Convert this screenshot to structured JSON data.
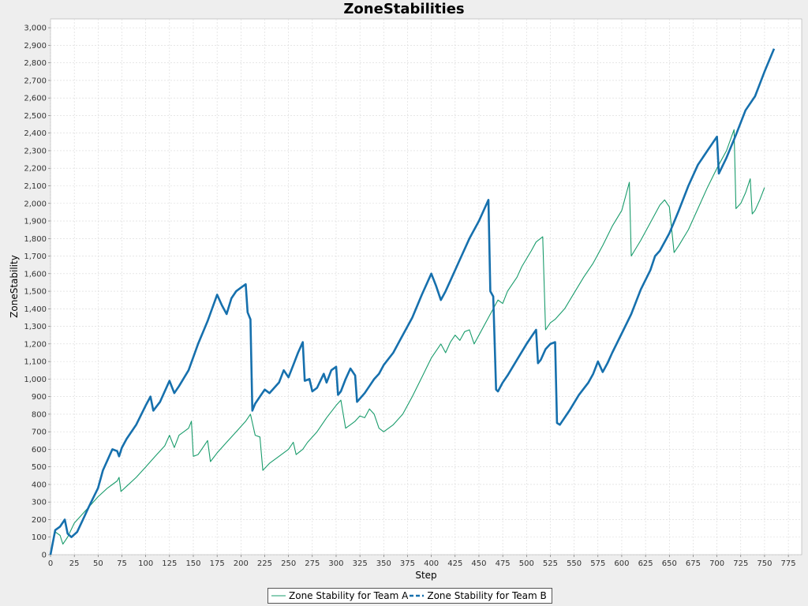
{
  "chart_data": {
    "type": "line",
    "title": "ZoneStabilities",
    "xlabel": "Step",
    "ylabel": "ZoneStability",
    "xlim": [
      0,
      789
    ],
    "ylim": [
      0,
      3050
    ],
    "xticks": [
      0,
      25,
      50,
      75,
      100,
      125,
      150,
      175,
      200,
      225,
      250,
      275,
      300,
      325,
      350,
      375,
      400,
      425,
      450,
      475,
      500,
      525,
      550,
      575,
      600,
      625,
      650,
      675,
      700,
      725,
      750,
      775
    ],
    "yticks": [
      0,
      100,
      200,
      300,
      400,
      500,
      600,
      700,
      800,
      900,
      1000,
      1100,
      1200,
      1300,
      1400,
      1500,
      1600,
      1700,
      1800,
      1900,
      2000,
      2100,
      2200,
      2300,
      2400,
      2500,
      2600,
      2700,
      2800,
      2900,
      3000
    ],
    "grid": true,
    "legend_position": "bottom",
    "series": [
      {
        "name": "Zone Stability for Team A",
        "color": "#1a9c6c",
        "style": "solid",
        "points": [
          [
            0,
            0
          ],
          [
            5,
            130
          ],
          [
            10,
            110
          ],
          [
            13,
            60
          ],
          [
            18,
            100
          ],
          [
            25,
            180
          ],
          [
            30,
            210
          ],
          [
            40,
            270
          ],
          [
            50,
            330
          ],
          [
            60,
            380
          ],
          [
            65,
            400
          ],
          [
            70,
            420
          ],
          [
            72,
            440
          ],
          [
            74,
            360
          ],
          [
            80,
            390
          ],
          [
            90,
            440
          ],
          [
            100,
            500
          ],
          [
            110,
            560
          ],
          [
            120,
            620
          ],
          [
            125,
            680
          ],
          [
            130,
            610
          ],
          [
            135,
            680
          ],
          [
            140,
            700
          ],
          [
            145,
            720
          ],
          [
            148,
            760
          ],
          [
            150,
            560
          ],
          [
            155,
            570
          ],
          [
            160,
            610
          ],
          [
            165,
            650
          ],
          [
            168,
            530
          ],
          [
            175,
            580
          ],
          [
            185,
            640
          ],
          [
            195,
            700
          ],
          [
            205,
            760
          ],
          [
            210,
            800
          ],
          [
            215,
            680
          ],
          [
            220,
            670
          ],
          [
            223,
            480
          ],
          [
            230,
            520
          ],
          [
            240,
            560
          ],
          [
            250,
            600
          ],
          [
            255,
            640
          ],
          [
            258,
            570
          ],
          [
            265,
            600
          ],
          [
            270,
            640
          ],
          [
            280,
            700
          ],
          [
            290,
            780
          ],
          [
            300,
            850
          ],
          [
            305,
            880
          ],
          [
            310,
            720
          ],
          [
            315,
            740
          ],
          [
            320,
            760
          ],
          [
            325,
            790
          ],
          [
            330,
            780
          ],
          [
            335,
            830
          ],
          [
            340,
            800
          ],
          [
            345,
            720
          ],
          [
            350,
            700
          ],
          [
            360,
            740
          ],
          [
            370,
            800
          ],
          [
            380,
            900
          ],
          [
            390,
            1010
          ],
          [
            400,
            1120
          ],
          [
            410,
            1200
          ],
          [
            415,
            1150
          ],
          [
            420,
            1210
          ],
          [
            425,
            1250
          ],
          [
            430,
            1220
          ],
          [
            435,
            1270
          ],
          [
            440,
            1280
          ],
          [
            445,
            1200
          ],
          [
            450,
            1250
          ],
          [
            460,
            1350
          ],
          [
            470,
            1450
          ],
          [
            475,
            1430
          ],
          [
            480,
            1500
          ],
          [
            490,
            1580
          ],
          [
            495,
            1640
          ],
          [
            505,
            1730
          ],
          [
            510,
            1780
          ],
          [
            517,
            1810
          ],
          [
            520,
            1280
          ],
          [
            525,
            1320
          ],
          [
            530,
            1340
          ],
          [
            540,
            1400
          ],
          [
            550,
            1490
          ],
          [
            560,
            1580
          ],
          [
            570,
            1660
          ],
          [
            580,
            1760
          ],
          [
            590,
            1870
          ],
          [
            600,
            1960
          ],
          [
            608,
            2120
          ],
          [
            610,
            1700
          ],
          [
            620,
            1790
          ],
          [
            630,
            1890
          ],
          [
            640,
            1990
          ],
          [
            645,
            2020
          ],
          [
            650,
            1980
          ],
          [
            655,
            1720
          ],
          [
            660,
            1760
          ],
          [
            670,
            1850
          ],
          [
            680,
            1970
          ],
          [
            690,
            2090
          ],
          [
            700,
            2200
          ],
          [
            710,
            2300
          ],
          [
            718,
            2420
          ],
          [
            720,
            1970
          ],
          [
            725,
            2000
          ],
          [
            730,
            2060
          ],
          [
            735,
            2140
          ],
          [
            737,
            1940
          ],
          [
            740,
            1960
          ],
          [
            745,
            2020
          ],
          [
            750,
            2090
          ]
        ]
      },
      {
        "name": "Zone Stability for Team B",
        "color": "#1670ad",
        "style": "dashed",
        "points": [
          [
            0,
            0
          ],
          [
            5,
            140
          ],
          [
            10,
            160
          ],
          [
            15,
            200
          ],
          [
            18,
            120
          ],
          [
            22,
            100
          ],
          [
            28,
            130
          ],
          [
            35,
            210
          ],
          [
            40,
            270
          ],
          [
            50,
            380
          ],
          [
            55,
            480
          ],
          [
            60,
            540
          ],
          [
            65,
            600
          ],
          [
            70,
            590
          ],
          [
            72,
            560
          ],
          [
            75,
            610
          ],
          [
            80,
            660
          ],
          [
            90,
            740
          ],
          [
            100,
            850
          ],
          [
            105,
            900
          ],
          [
            108,
            820
          ],
          [
            115,
            870
          ],
          [
            125,
            990
          ],
          [
            130,
            920
          ],
          [
            135,
            960
          ],
          [
            145,
            1050
          ],
          [
            155,
            1200
          ],
          [
            165,
            1330
          ],
          [
            175,
            1480
          ],
          [
            180,
            1420
          ],
          [
            185,
            1370
          ],
          [
            190,
            1460
          ],
          [
            195,
            1500
          ],
          [
            200,
            1520
          ],
          [
            205,
            1540
          ],
          [
            207,
            1380
          ],
          [
            210,
            1340
          ],
          [
            212,
            820
          ],
          [
            215,
            860
          ],
          [
            220,
            900
          ],
          [
            225,
            940
          ],
          [
            230,
            920
          ],
          [
            240,
            980
          ],
          [
            245,
            1050
          ],
          [
            250,
            1010
          ],
          [
            255,
            1080
          ],
          [
            260,
            1150
          ],
          [
            265,
            1210
          ],
          [
            267,
            990
          ],
          [
            272,
            1000
          ],
          [
            275,
            930
          ],
          [
            280,
            950
          ],
          [
            287,
            1030
          ],
          [
            290,
            980
          ],
          [
            295,
            1050
          ],
          [
            300,
            1070
          ],
          [
            302,
            910
          ],
          [
            305,
            930
          ],
          [
            310,
            1000
          ],
          [
            315,
            1060
          ],
          [
            320,
            1020
          ],
          [
            322,
            870
          ],
          [
            330,
            920
          ],
          [
            335,
            960
          ],
          [
            340,
            1000
          ],
          [
            345,
            1030
          ],
          [
            350,
            1080
          ],
          [
            360,
            1150
          ],
          [
            370,
            1250
          ],
          [
            380,
            1350
          ],
          [
            390,
            1480
          ],
          [
            400,
            1600
          ],
          [
            405,
            1530
          ],
          [
            410,
            1450
          ],
          [
            415,
            1500
          ],
          [
            420,
            1560
          ],
          [
            430,
            1680
          ],
          [
            440,
            1800
          ],
          [
            450,
            1900
          ],
          [
            460,
            2020
          ],
          [
            462,
            1500
          ],
          [
            465,
            1470
          ],
          [
            468,
            940
          ],
          [
            470,
            930
          ],
          [
            475,
            980
          ],
          [
            480,
            1020
          ],
          [
            490,
            1110
          ],
          [
            500,
            1200
          ],
          [
            505,
            1240
          ],
          [
            510,
            1280
          ],
          [
            512,
            1090
          ],
          [
            515,
            1110
          ],
          [
            520,
            1170
          ],
          [
            525,
            1200
          ],
          [
            530,
            1210
          ],
          [
            532,
            750
          ],
          [
            535,
            740
          ],
          [
            545,
            820
          ],
          [
            555,
            910
          ],
          [
            565,
            980
          ],
          [
            570,
            1030
          ],
          [
            575,
            1100
          ],
          [
            580,
            1040
          ],
          [
            585,
            1090
          ],
          [
            590,
            1150
          ],
          [
            600,
            1260
          ],
          [
            610,
            1370
          ],
          [
            620,
            1510
          ],
          [
            630,
            1620
          ],
          [
            635,
            1700
          ],
          [
            640,
            1730
          ],
          [
            650,
            1830
          ],
          [
            660,
            1960
          ],
          [
            670,
            2100
          ],
          [
            680,
            2220
          ],
          [
            690,
            2300
          ],
          [
            700,
            2380
          ],
          [
            702,
            2170
          ],
          [
            710,
            2260
          ],
          [
            720,
            2390
          ],
          [
            730,
            2530
          ],
          [
            740,
            2610
          ],
          [
            750,
            2750
          ],
          [
            760,
            2880
          ]
        ]
      }
    ]
  }
}
